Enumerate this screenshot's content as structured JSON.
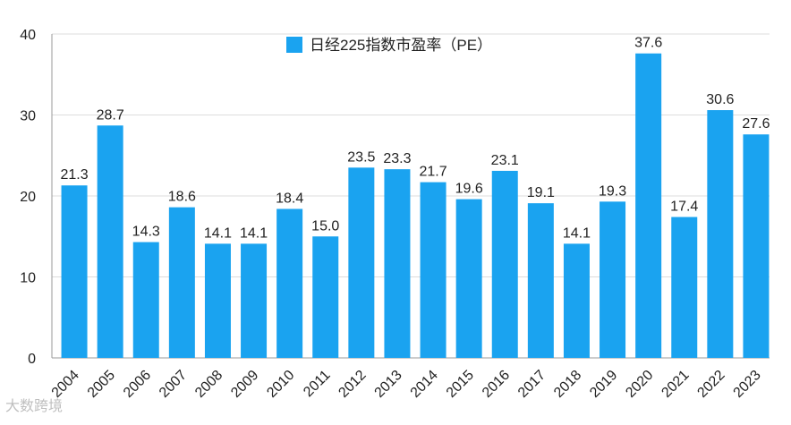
{
  "chart_data": {
    "type": "bar",
    "categories": [
      "2004",
      "2005",
      "2006",
      "2007",
      "2008",
      "2009",
      "2010",
      "2011",
      "2012",
      "2013",
      "2014",
      "2015",
      "2016",
      "2017",
      "2018",
      "2019",
      "2020",
      "2021",
      "2022",
      "2023"
    ],
    "series": [
      {
        "name": "日经225指数市盈率（PE）",
        "values": [
          21.3,
          28.7,
          14.3,
          18.6,
          14.1,
          14.1,
          18.4,
          15.0,
          23.5,
          23.3,
          21.7,
          19.6,
          23.1,
          19.1,
          14.1,
          19.3,
          37.6,
          17.4,
          30.6,
          27.6
        ],
        "labels": [
          "21.3",
          "28.7",
          "14.3",
          "18.6",
          "14.1",
          "14.1",
          "18.4",
          "15.0",
          "23.5",
          "23.3",
          "21.7",
          "19.6",
          "23.1",
          "19.1",
          "14.1",
          "19.3",
          "37.6",
          "17.4",
          "30.6",
          "27.6"
        ],
        "color": "#1aa3f0"
      }
    ],
    "ylim": [
      0,
      40
    ],
    "yticks": [
      "0",
      "10",
      "20",
      "30",
      "40"
    ],
    "grid": true,
    "legend_position": "top-center",
    "title": "",
    "xlabel": "",
    "ylabel": ""
  },
  "watermark": "大数跨境"
}
